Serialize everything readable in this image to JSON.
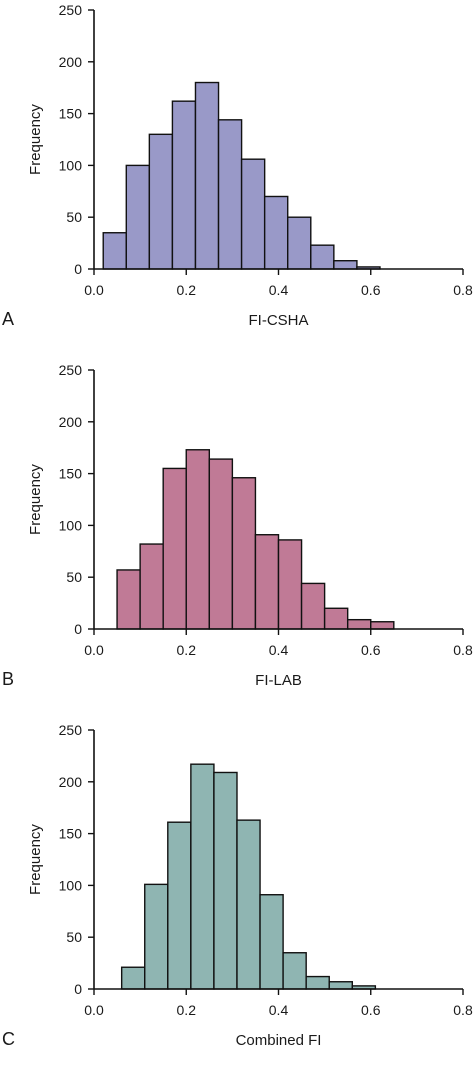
{
  "chart_data": [
    {
      "type": "bar",
      "panel_label": "A",
      "xlabel": "FI-CSHA",
      "ylabel": "Frequency",
      "xlim": [
        0,
        0.8
      ],
      "ylim": [
        0,
        250
      ],
      "xticks": [
        "0.0",
        "0.2",
        "0.4",
        "0.6",
        "0.8"
      ],
      "yticks": [
        "0",
        "50",
        "100",
        "150",
        "200",
        "250"
      ],
      "bar_color": "#9999c8",
      "bin_width": 0.05,
      "bin_starts": [
        0.02,
        0.07,
        0.12,
        0.17,
        0.22,
        0.27,
        0.32,
        0.37,
        0.42,
        0.47,
        0.52,
        0.57
      ],
      "values": [
        35,
        100,
        130,
        162,
        180,
        144,
        106,
        70,
        50,
        23,
        8,
        2
      ]
    },
    {
      "type": "bar",
      "panel_label": "B",
      "xlabel": "FI-LAB",
      "ylabel": "Frequency",
      "xlim": [
        0,
        0.8
      ],
      "ylim": [
        0,
        250
      ],
      "xticks": [
        "0.0",
        "0.2",
        "0.4",
        "0.6",
        "0.8"
      ],
      "yticks": [
        "0",
        "50",
        "100",
        "150",
        "200",
        "250"
      ],
      "bar_color": "#c07a96",
      "bin_width": 0.05,
      "bin_starts": [
        0.05,
        0.1,
        0.15,
        0.2,
        0.25,
        0.3,
        0.35,
        0.4,
        0.45,
        0.5,
        0.55,
        0.6
      ],
      "values": [
        57,
        82,
        155,
        173,
        164,
        146,
        91,
        86,
        44,
        20,
        9,
        7
      ]
    },
    {
      "type": "bar",
      "panel_label": "C",
      "xlabel": "Combined FI",
      "ylabel": "Frequency",
      "xlim": [
        0,
        0.8
      ],
      "ylim": [
        0,
        250
      ],
      "xticks": [
        "0.0",
        "0.2",
        "0.4",
        "0.6",
        "0.8"
      ],
      "yticks": [
        "0",
        "50",
        "100",
        "150",
        "200",
        "250"
      ],
      "bar_color": "#8fb5b2",
      "bin_width": 0.05,
      "bin_starts": [
        0.06,
        0.11,
        0.16,
        0.21,
        0.26,
        0.31,
        0.36,
        0.41,
        0.46,
        0.51,
        0.56
      ],
      "values": [
        21,
        101,
        161,
        217,
        209,
        163,
        91,
        35,
        12,
        7,
        3
      ]
    }
  ]
}
